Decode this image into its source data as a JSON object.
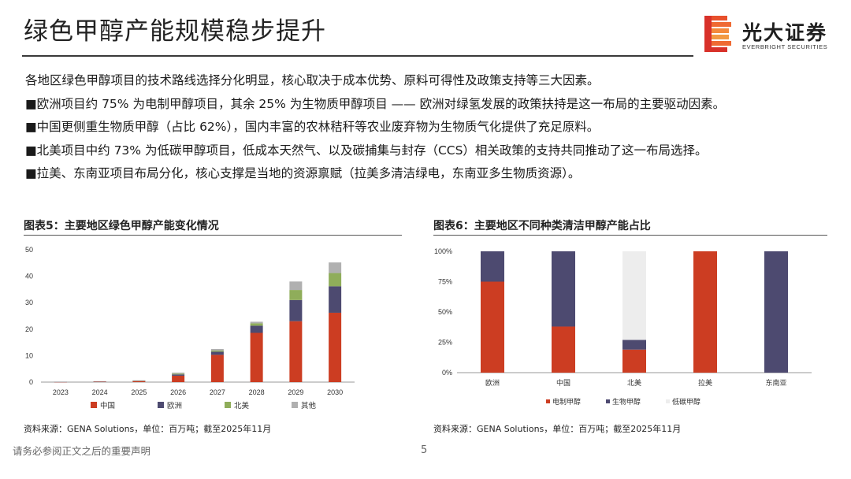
{
  "header": {
    "title": "绿色甲醇产能规模稳步提升",
    "logo_name": "光大证券",
    "logo_sub": "EVERBRIGHT SECURITIES"
  },
  "bullets": [
    "各地区绿色甲醇项目的技术路线选择分化明显，核心取决于成本优势、原料可得性及政策支持等三大因素。",
    "■欧洲项目约 75% 为电制甲醇项目，其余 25% 为生物质甲醇项目 —— 欧洲对绿氢发展的政策扶持是这一布局的主要驱动因素。",
    "■中国更侧重生物质甲醇（占比 62%），国内丰富的农林秸秆等农业废弃物为生物质气化提供了充足原料。",
    "■北美项目中约 73% 为低碳甲醇项目，低成本天然气、以及碳捕集与封存（CCS）相关政策的支持共同推动了这一布局选择。",
    "■拉美、东南亚项目布局分化，核心支撑是当地的资源禀赋（拉美多清洁绿电，东南亚多生物质资源）。"
  ],
  "colors": {
    "china": "#cc3d22",
    "europe": "#4d4a70",
    "north_america": "#8fad5a",
    "other": "#b0b0b0",
    "electro": "#cc3d22",
    "bio": "#4d4a70",
    "lowcarbon": "#ededed"
  },
  "chart_data": [
    {
      "type": "bar",
      "stacked": true,
      "title": "图表5：主要地区绿色甲醇产能变化情况",
      "categories": [
        "2023",
        "2024",
        "2025",
        "2026",
        "2027",
        "2028",
        "2029",
        "2030"
      ],
      "yticks": [
        "0",
        "10",
        "20",
        "30",
        "40",
        "50"
      ],
      "ylim": [
        0,
        50
      ],
      "series": [
        {
          "name": "中国",
          "values": [
            0.1,
            0.2,
            0.4,
            2.4,
            10.3,
            18.6,
            23.0,
            26.2
          ]
        },
        {
          "name": "欧洲",
          "values": [
            0.05,
            0.1,
            0.15,
            0.5,
            1.2,
            2.7,
            8.0,
            10.0
          ]
        },
        {
          "name": "北美",
          "values": [
            0.0,
            0.0,
            0.05,
            0.3,
            0.4,
            0.9,
            3.8,
            5.0
          ]
        },
        {
          "name": "其他",
          "values": [
            0.05,
            0.05,
            0.05,
            0.4,
            0.6,
            0.6,
            3.2,
            4.0
          ]
        }
      ],
      "legend_position": "bottom",
      "source": "资料来源：GENA Solutions，单位：百万吨；截至2025年11月"
    },
    {
      "type": "bar",
      "stacked": true,
      "percent": true,
      "title": "图表6：主要地区不同种类清洁甲醇产能占比",
      "categories": [
        "欧洲",
        "中国",
        "北美",
        "拉美",
        "东南亚"
      ],
      "yticks": [
        "0%",
        "25%",
        "50%",
        "75%",
        "100%"
      ],
      "ylim": [
        0,
        100
      ],
      "series": [
        {
          "name": "电制甲醇",
          "values": [
            75,
            38,
            19,
            100,
            0
          ]
        },
        {
          "name": "生物甲醇",
          "values": [
            25,
            62,
            8,
            0,
            100
          ]
        },
        {
          "name": "低碳甲醇",
          "values": [
            0,
            0,
            73,
            0,
            0
          ]
        }
      ],
      "legend_position": "bottom",
      "source": "资料来源：GENA Solutions，单位：百万吨；截至2025年11月"
    }
  ],
  "footer": {
    "disclaimer": "请务必参阅正文之后的重要声明",
    "page_number": "5"
  }
}
